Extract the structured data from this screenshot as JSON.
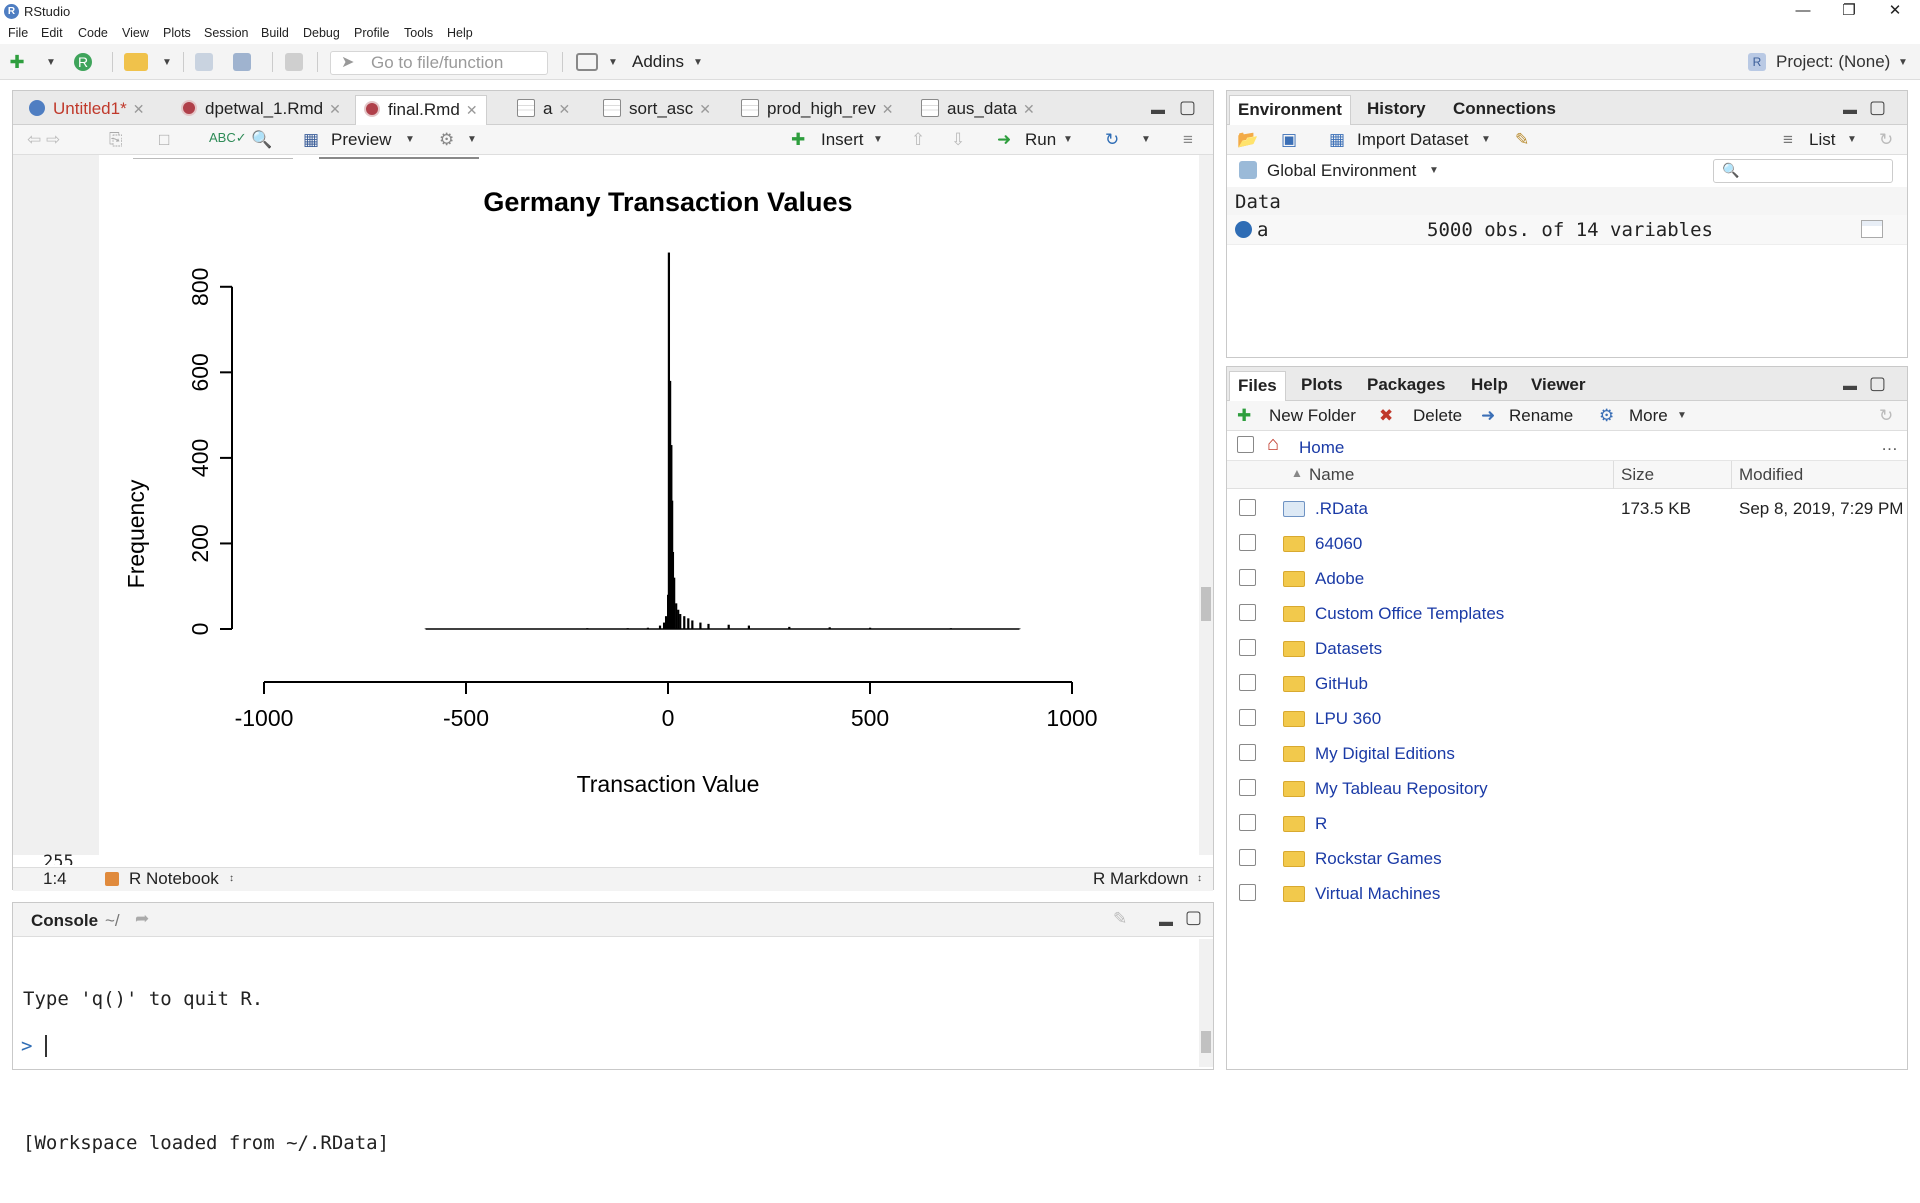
{
  "window": {
    "title": "RStudio"
  },
  "menu": [
    "File",
    "Edit",
    "Code",
    "View",
    "Plots",
    "Session",
    "Build",
    "Debug",
    "Profile",
    "Tools",
    "Help"
  ],
  "toolbar": {
    "goto_placeholder": "Go to file/function",
    "addins": "Addins",
    "project": "Project: (None)"
  },
  "source": {
    "tabs": [
      {
        "label": "Untitled1*",
        "icon": "r-file-icon",
        "color": "#c0392b"
      },
      {
        "label": "dpetwal_1.Rmd",
        "icon": "rmd-icon"
      },
      {
        "label": "final.Rmd",
        "icon": "rmd-icon",
        "active": true
      },
      {
        "label": "a",
        "icon": "data-grid-icon"
      },
      {
        "label": "sort_asc",
        "icon": "data-grid-icon"
      },
      {
        "label": "prod_high_rev",
        "icon": "data-grid-icon"
      },
      {
        "label": "aus_data",
        "icon": "data-grid-icon"
      }
    ],
    "toolbar": {
      "preview": "Preview",
      "insert": "Insert",
      "run": "Run"
    },
    "line_number_partial": "255",
    "status": {
      "position": "1:4",
      "doc_type": "R Notebook",
      "mode": "R Markdown"
    }
  },
  "chart_data": {
    "type": "histogram",
    "title": "Germany Transaction Values",
    "xlabel": "Transaction Value",
    "ylabel": "Frequency",
    "xlim": [
      -1000,
      1000
    ],
    "ylim": [
      0,
      900
    ],
    "x_ticks": [
      "-1000",
      "-500",
      "0",
      "500",
      "1000"
    ],
    "y_ticks": [
      "0",
      "200",
      "400",
      "600",
      "800"
    ],
    "x": [
      -600,
      -400,
      -200,
      -100,
      -50,
      -20,
      -10,
      -5,
      0,
      2,
      5,
      8,
      10,
      12,
      15,
      20,
      25,
      30,
      40,
      50,
      60,
      80,
      100,
      150,
      200,
      300,
      400,
      500,
      700,
      870
    ],
    "values": [
      1,
      1,
      2,
      2,
      3,
      8,
      15,
      30,
      80,
      880,
      580,
      430,
      300,
      180,
      120,
      60,
      45,
      35,
      30,
      25,
      20,
      15,
      12,
      10,
      8,
      5,
      4,
      3,
      2,
      1
    ]
  },
  "console": {
    "label": "Console",
    "path": "~/",
    "lines": [
      "Type 'q()' to quit R.",
      "",
      "[Workspace loaded from ~/.RData]"
    ],
    "prompt": ">"
  },
  "environment": {
    "tabs": [
      "Environment",
      "History",
      "Connections"
    ],
    "import_dataset": "Import Dataset",
    "list_view": "List",
    "scope": "Global Environment",
    "section": "Data",
    "rows": [
      {
        "name": "a",
        "value": "5000 obs. of 14 variables"
      }
    ]
  },
  "files": {
    "tabs": [
      "Files",
      "Plots",
      "Packages",
      "Help",
      "Viewer"
    ],
    "actions": {
      "new_folder": "New Folder",
      "delete": "Delete",
      "rename": "Rename",
      "more": "More"
    },
    "breadcrumb": "Home",
    "columns": {
      "name": "Name",
      "size": "Size",
      "modified": "Modified"
    },
    "items": [
      {
        "name": ".RData",
        "size": "173.5 KB",
        "modified": "Sep 8, 2019, 7:29 PM",
        "type": "rdata"
      },
      {
        "name": "64060",
        "size": "",
        "modified": "",
        "type": "folder"
      },
      {
        "name": "Adobe",
        "size": "",
        "modified": "",
        "type": "folder"
      },
      {
        "name": "Custom Office Templates",
        "size": "",
        "modified": "",
        "type": "folder"
      },
      {
        "name": "Datasets",
        "size": "",
        "modified": "",
        "type": "folder"
      },
      {
        "name": "GitHub",
        "size": "",
        "modified": "",
        "type": "folder"
      },
      {
        "name": "LPU 360",
        "size": "",
        "modified": "",
        "type": "folder"
      },
      {
        "name": "My Digital Editions",
        "size": "",
        "modified": "",
        "type": "folder"
      },
      {
        "name": "My Tableau Repository",
        "size": "",
        "modified": "",
        "type": "folder"
      },
      {
        "name": "R",
        "size": "",
        "modified": "",
        "type": "folder"
      },
      {
        "name": "Rockstar Games",
        "size": "",
        "modified": "",
        "type": "folder"
      },
      {
        "name": "Virtual Machines",
        "size": "",
        "modified": "",
        "type": "folder"
      }
    ]
  }
}
